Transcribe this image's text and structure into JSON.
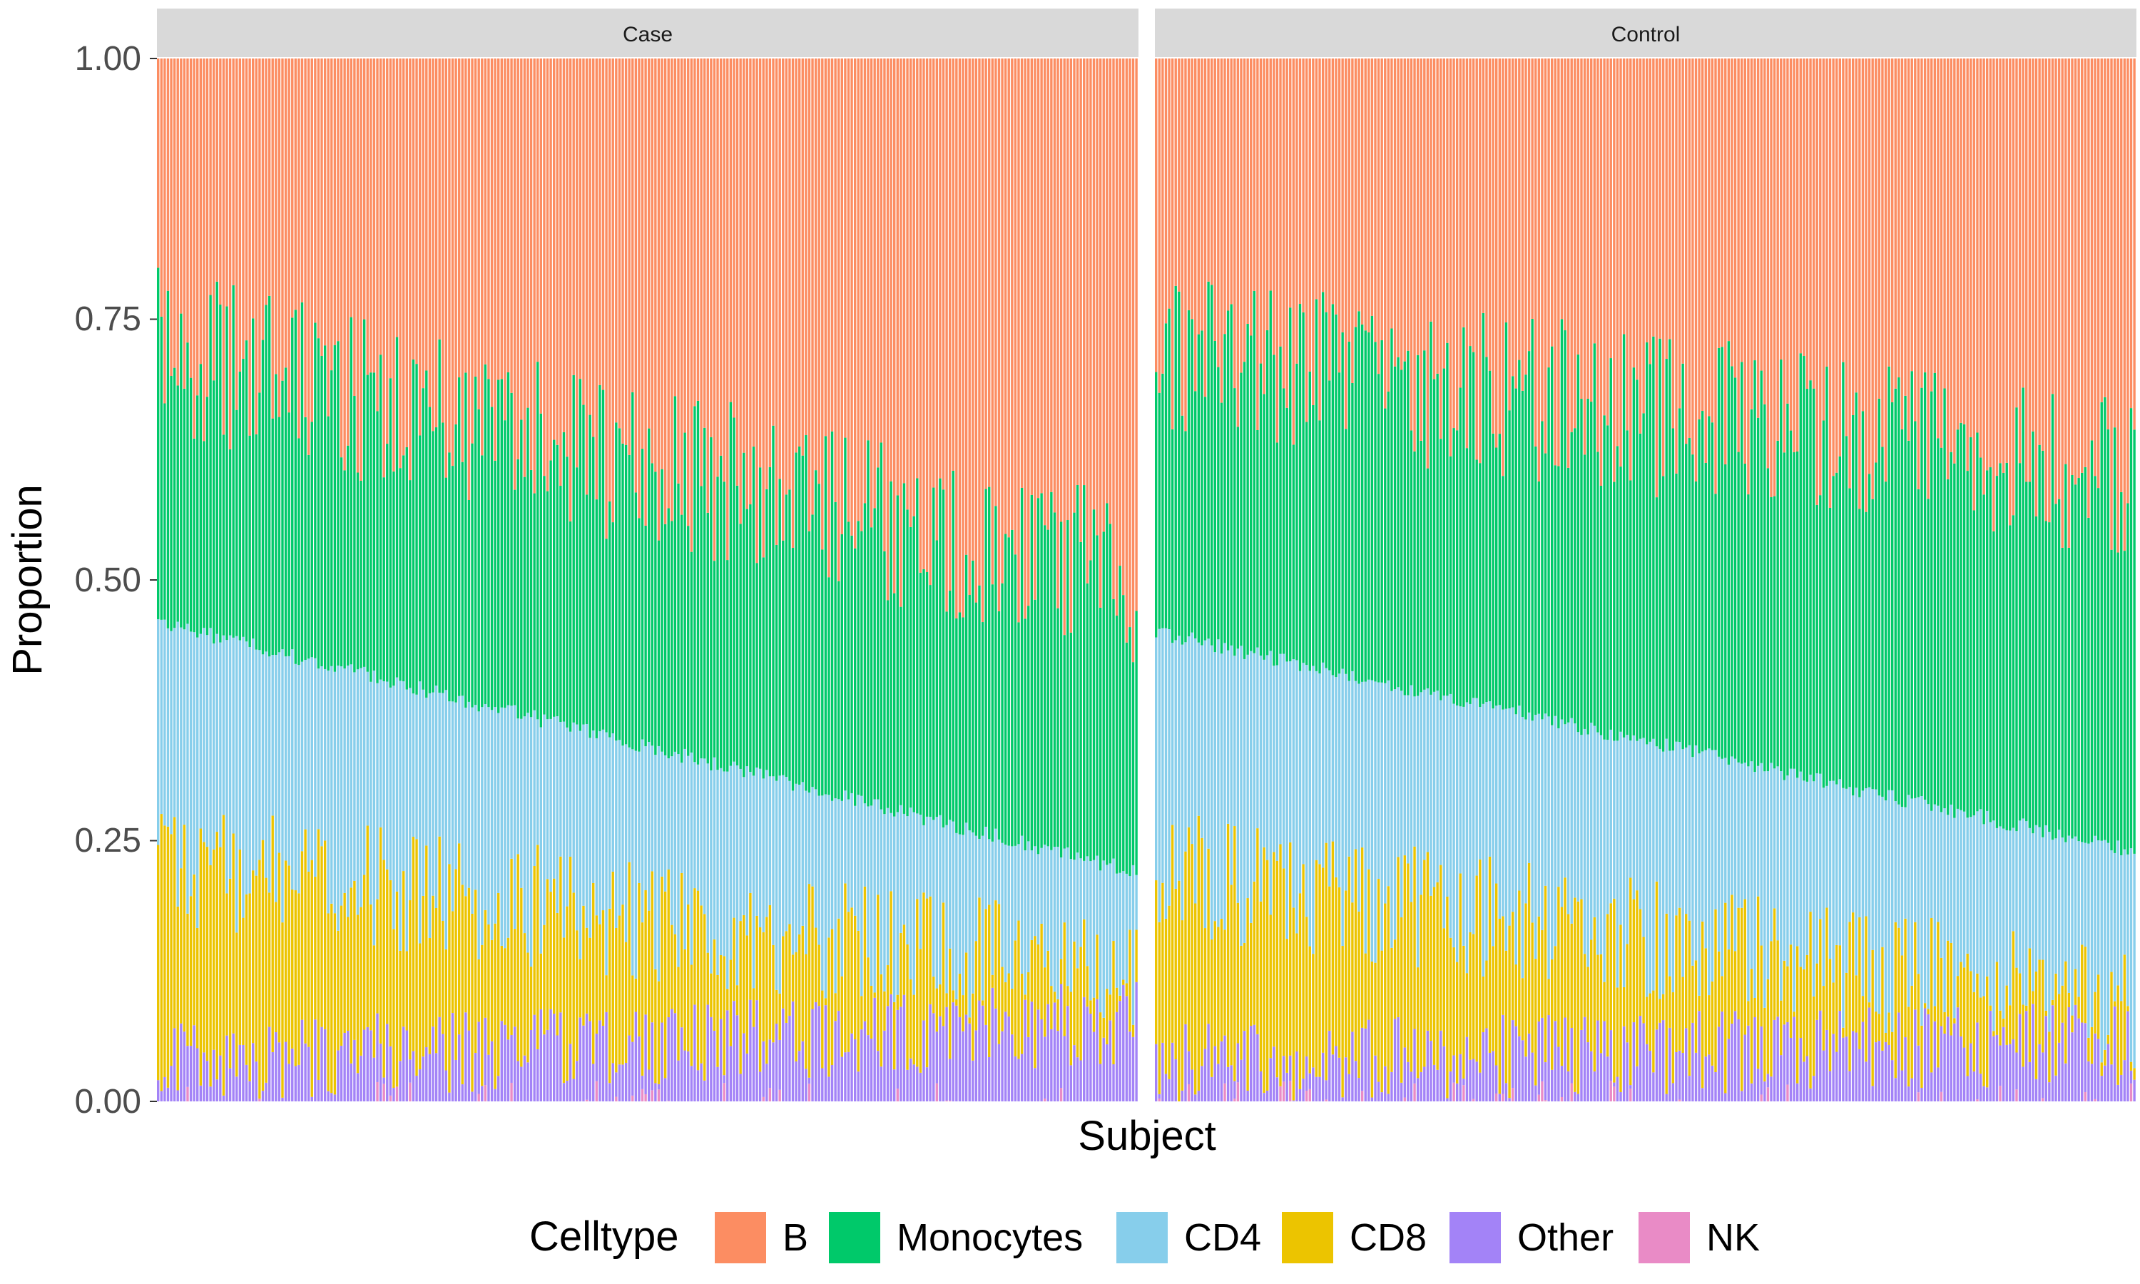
{
  "chart_data": {
    "type": "bar",
    "stacked": true,
    "facets": [
      "Case",
      "Control"
    ],
    "xlabel": "Subject",
    "ylabel": "Proportion",
    "ylim": [
      0,
      1
    ],
    "yticks": [
      "0.00",
      "0.25",
      "0.50",
      "0.75",
      "1.00"
    ],
    "ytick_values": [
      0,
      0.25,
      0.5,
      0.75,
      1
    ],
    "legend": {
      "title": "Celltype",
      "position": "bottom",
      "entries": [
        "B",
        "Monocytes",
        "CD4",
        "CD8",
        "Other",
        "NK"
      ]
    },
    "colors": {
      "B": "#fc8d62",
      "Monocytes": "#00c96a",
      "CD4": "#87ceeb",
      "CD8": "#ecc400",
      "Other": "#a383f7",
      "NK": "#e98bc6"
    },
    "stack_order_bottom_to_top": [
      "NK",
      "Other",
      "CD8",
      "CD4",
      "Monocytes",
      "B"
    ],
    "panels": [
      {
        "facet": "Case",
        "n_subjects": 300,
        "series_cumulative_tops": {
          "Other_top_start_end": [
            0.02,
            0.06
          ],
          "CD8_top_start_end": [
            0.23,
            0.12
          ],
          "CD4_top_start_end": [
            0.46,
            0.22
          ],
          "Monocytes_top_start_end": [
            0.72,
            0.5
          ]
        }
      },
      {
        "facet": "Control",
        "n_subjects": 300,
        "series_cumulative_tops": {
          "Other_top_start_end": [
            0.02,
            0.04
          ],
          "CD8_top_start_end": [
            0.22,
            0.09
          ],
          "CD4_top_start_end": [
            0.45,
            0.24
          ],
          "Monocytes_top_start_end": [
            0.72,
            0.6
          ]
        }
      }
    ]
  }
}
